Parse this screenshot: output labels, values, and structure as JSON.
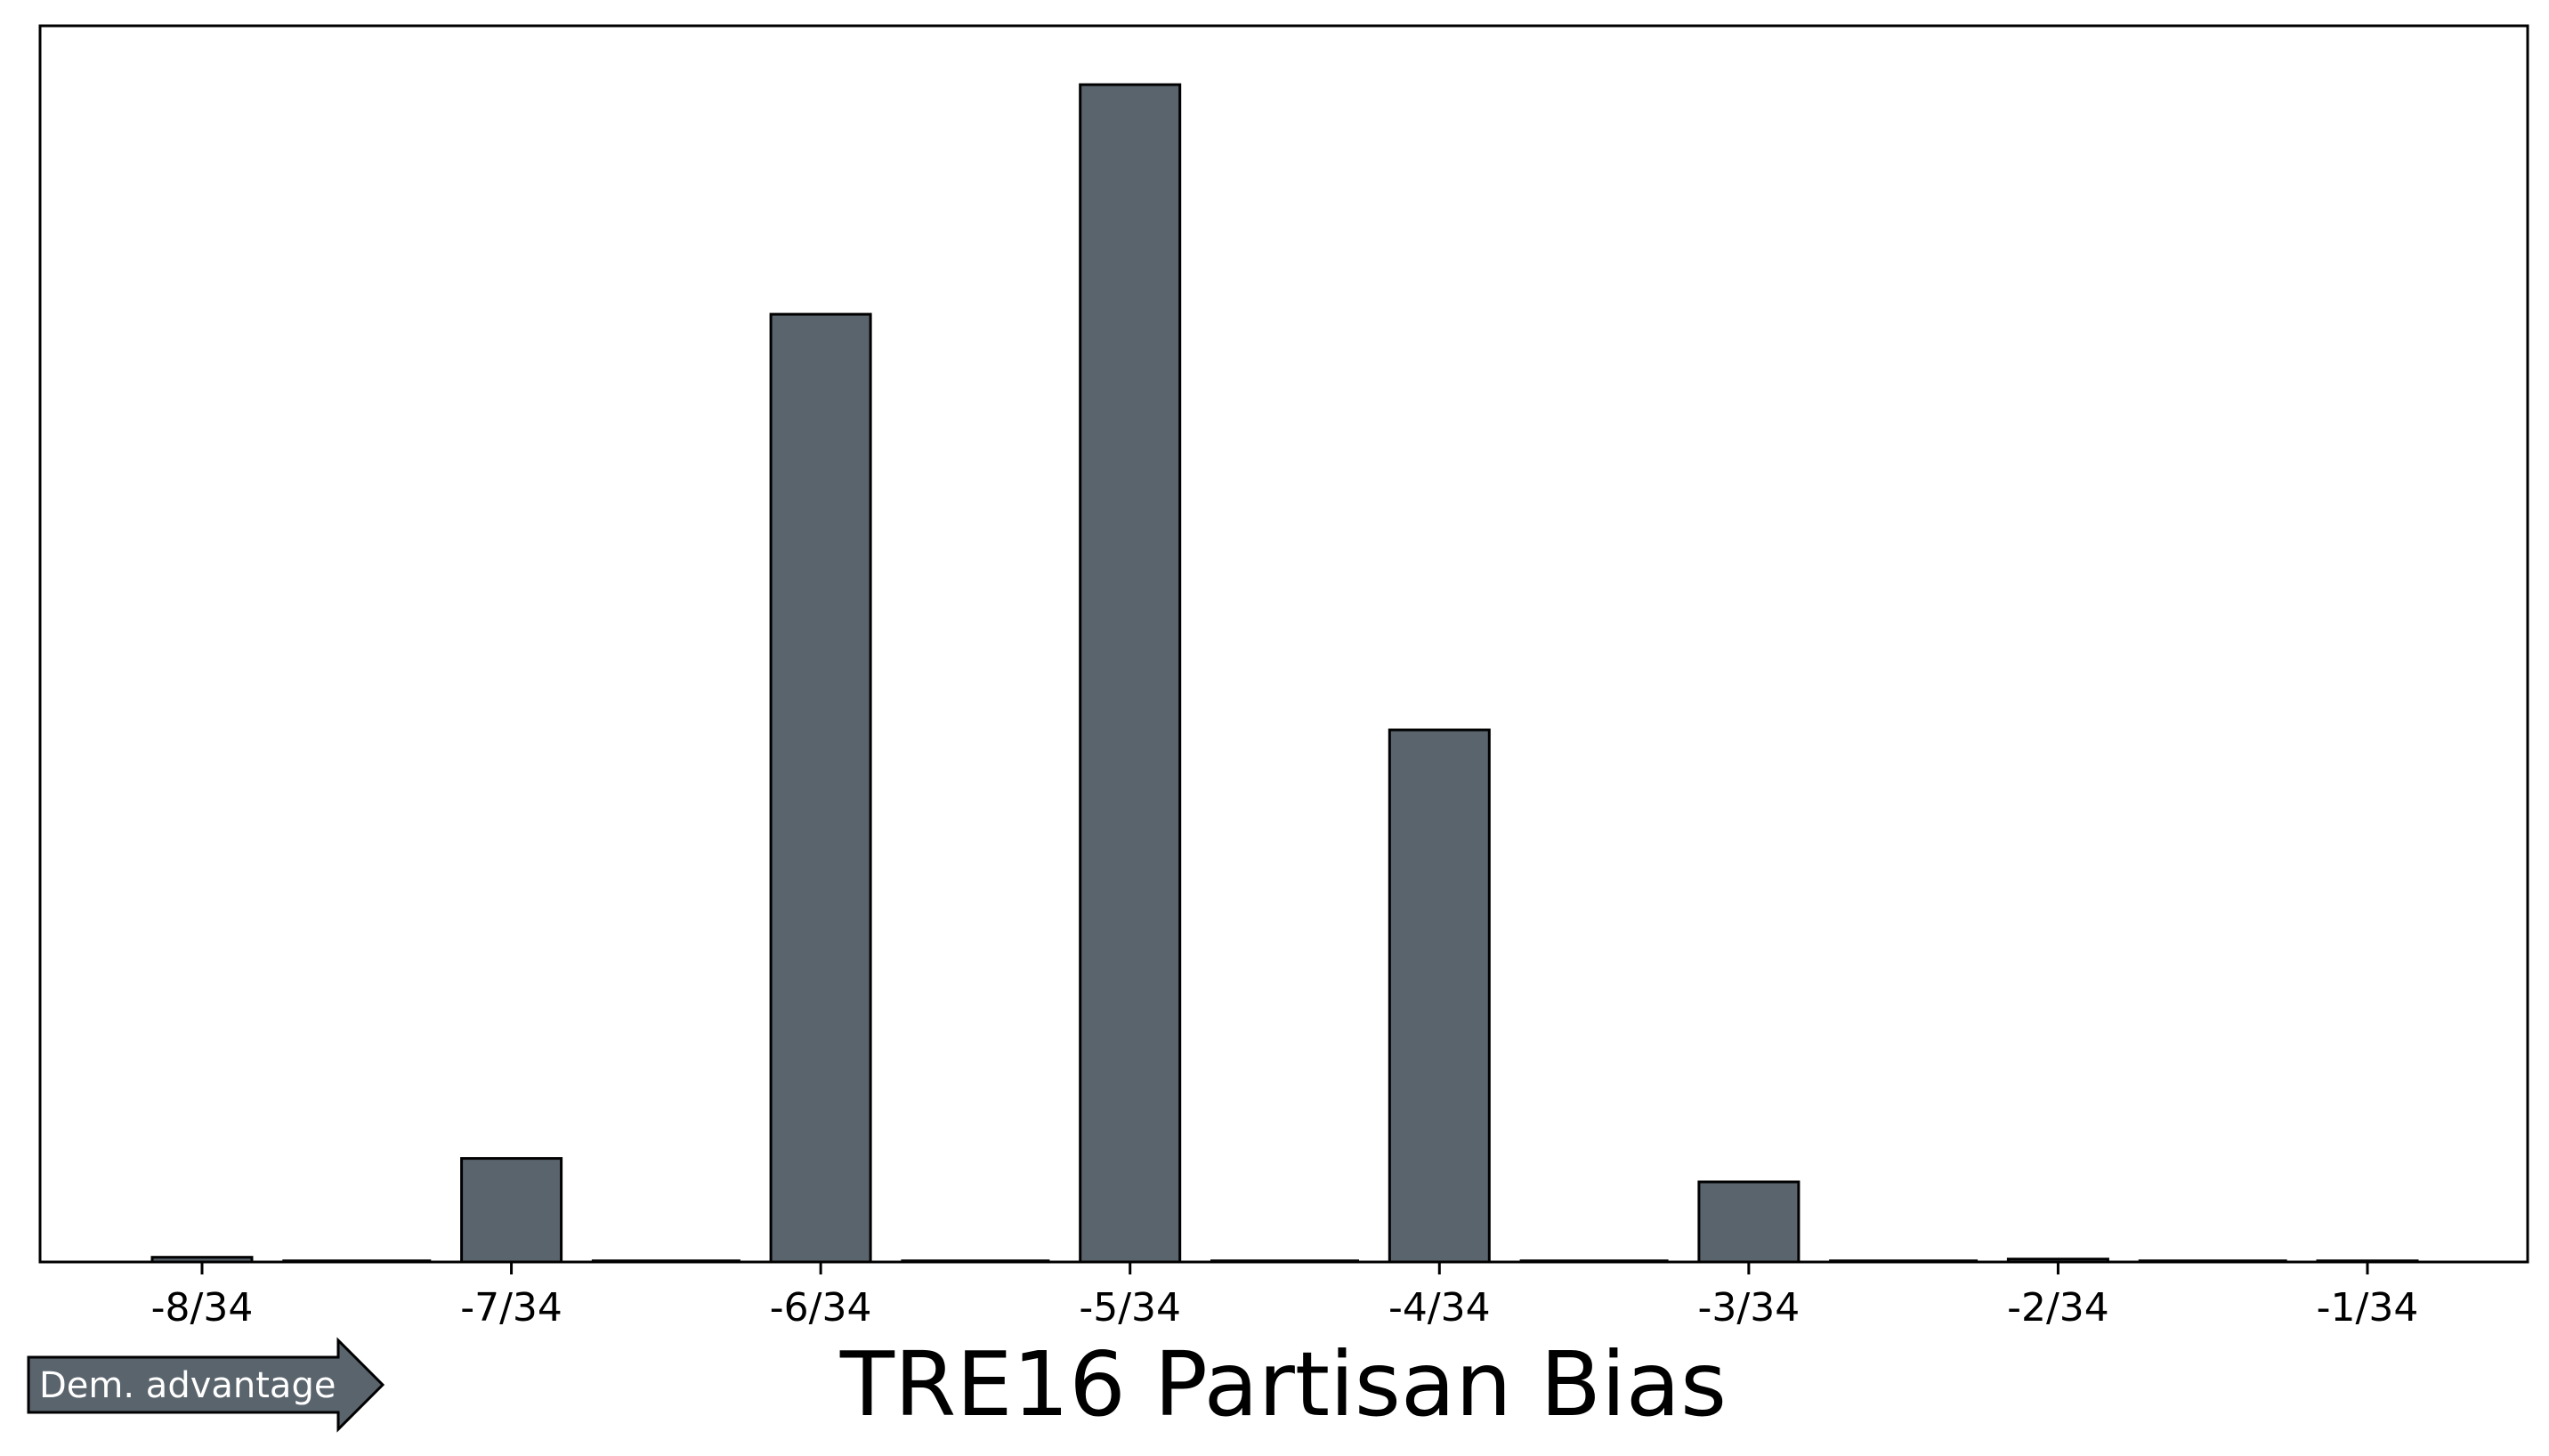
{
  "chart_data": {
    "type": "bar",
    "title": "TRE16 Partisan Bias",
    "xlabel": "",
    "ylabel": "",
    "tick_labels": [
      "-8/34",
      "-7/34",
      "-6/34",
      "-5/34",
      "-4/34",
      "-3/34",
      "-2/34",
      "-1/34"
    ],
    "x": [
      -8,
      -7.5,
      -7,
      -6.5,
      -6,
      -5.5,
      -5,
      -4.5,
      -4,
      -3.5,
      -3,
      -2.5,
      -2,
      -1.5,
      -1
    ],
    "values": [
      0.4,
      0.1,
      8.8,
      0.1,
      80.5,
      0.1,
      100,
      0.1,
      45.2,
      0.1,
      6.8,
      0.1,
      0.25,
      0.1,
      0.1
    ],
    "ylim": [
      0,
      105
    ],
    "grid": false,
    "y_ticks_shown": false
  },
  "annotation": {
    "arrow_label": "Dem. advantage"
  },
  "colors": {
    "bar_fill": "#5a646d",
    "bar_edge": "#000000",
    "arrow_fill": "#5a646d"
  }
}
